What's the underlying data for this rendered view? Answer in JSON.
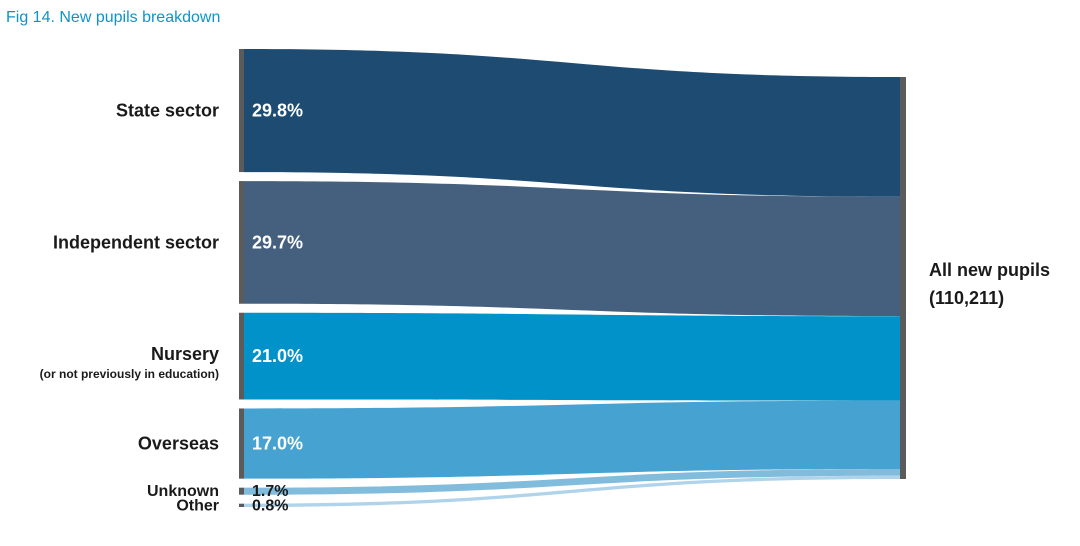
{
  "chart_data": {
    "type": "sankey",
    "title": "Fig 14. New pupils breakdown",
    "target": {
      "name": "All new pupils",
      "value_label": "(110,211)"
    },
    "sources": [
      {
        "name": "State sector",
        "sublabel": "",
        "value": 29.8,
        "value_label": "29.8%",
        "color": "#1d4b72"
      },
      {
        "name": "Independent sector",
        "sublabel": "",
        "value": 29.7,
        "value_label": "29.7%",
        "color": "#45607e"
      },
      {
        "name": "Nursery",
        "sublabel": "(or not previously in education)",
        "value": 21.0,
        "value_label": "21.0%",
        "color": "#0092c8"
      },
      {
        "name": "Overseas",
        "sublabel": "",
        "value": 17.0,
        "value_label": "17.0%",
        "color": "#46a2d0"
      },
      {
        "name": "Unknown",
        "sublabel": "",
        "value": 1.7,
        "value_label": "1.7%",
        "color": "#82bcdc"
      },
      {
        "name": "Other",
        "sublabel": "",
        "value": 0.8,
        "value_label": "0.8%",
        "color": "#afd3ea"
      }
    ],
    "node_bar_color": "#5b5b5b"
  }
}
